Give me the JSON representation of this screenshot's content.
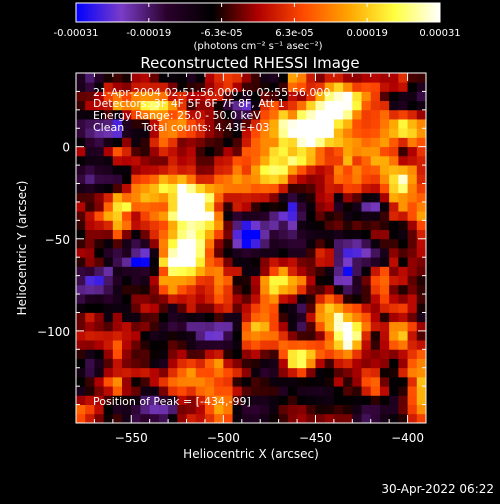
{
  "chart_data": {
    "type": "heatmap",
    "title": "Reconstructed RHESSI Image",
    "xlabel": "Heliocentric X (arcsec)",
    "ylabel": "Heliocentric Y (arcsec)",
    "xlim": [
      -580,
      -390
    ],
    "ylim": [
      -150,
      40
    ],
    "x_ticks": [
      -550,
      -500,
      -450,
      -400
    ],
    "y_ticks": [
      -100,
      -50,
      0
    ],
    "x_tick_labels": [
      "−550",
      "−500",
      "−450",
      "−400"
    ],
    "y_tick_labels": [
      "−100",
      "−50",
      "0"
    ],
    "colorbar": {
      "range": [
        -0.00031,
        0.00031
      ],
      "tick_labels": [
        "-0.00031",
        "-0.00019",
        "-6.3e-05",
        "6.3e-05",
        "0.00019",
        "0.00031"
      ],
      "unit_label": "(photons cm⁻² s⁻¹ asec⁻²)",
      "colors": [
        "#0000ff",
        "#7a3cc8",
        "#2a002a",
        "#000000",
        "#b00000",
        "#ff4a00",
        "#ffa500",
        "#ffff40",
        "#ffffff"
      ]
    },
    "annotations": [
      "21-Apr-2004 02:51:56.000 to 02:55:56.000",
      "Detectors: 3F 4F 5F 6F 7F 8F, Att 1",
      "Energy Range: 25.0 - 50.0 keV",
      "Clean     Total counts: 4.43E+03"
    ],
    "peak_label": "Position of Peak = [-434,-99]",
    "peak_position": [
      -434,
      -99
    ],
    "hotspots": [
      {
        "x": -522,
        "y": -50,
        "sx": 10,
        "sy": 20,
        "a": 1.0
      },
      {
        "x": -513,
        "y": -32,
        "sx": 9,
        "sy": 10,
        "a": 0.85
      },
      {
        "x": -528,
        "y": -22,
        "sx": 8,
        "sy": 7,
        "a": 0.6
      },
      {
        "x": -452,
        "y": 10,
        "sx": 14,
        "sy": 12,
        "a": 0.85
      },
      {
        "x": -438,
        "y": 22,
        "sx": 10,
        "sy": 10,
        "a": 0.75
      },
      {
        "x": -470,
        "y": -8,
        "sx": 12,
        "sy": 8,
        "a": 0.55
      },
      {
        "x": -492,
        "y": -20,
        "sx": 10,
        "sy": 9,
        "a": 0.5
      },
      {
        "x": -434,
        "y": -99,
        "sx": 9,
        "sy": 9,
        "a": 1.0
      },
      {
        "x": -455,
        "y": -110,
        "sx": 10,
        "sy": 8,
        "a": 0.6
      },
      {
        "x": -480,
        "y": -95,
        "sx": 9,
        "sy": 12,
        "a": 0.55
      },
      {
        "x": -560,
        "y": -110,
        "sx": 9,
        "sy": 12,
        "a": 0.6
      },
      {
        "x": -548,
        "y": -28,
        "sx": 10,
        "sy": 10,
        "a": 0.5
      },
      {
        "x": -405,
        "y": -15,
        "sx": 8,
        "sy": 22,
        "a": 0.6
      },
      {
        "x": -410,
        "y": -70,
        "sx": 10,
        "sy": 10,
        "a": 0.5
      },
      {
        "x": -398,
        "y": -120,
        "sx": 8,
        "sy": 12,
        "a": 0.55
      },
      {
        "x": -520,
        "y": -120,
        "sx": 8,
        "sy": 8,
        "a": 0.45
      },
      {
        "x": -540,
        "y": 20,
        "sx": 8,
        "sy": 6,
        "a": 0.45
      },
      {
        "x": -470,
        "y": -62,
        "sx": 9,
        "sy": 9,
        "a": 0.5
      },
      {
        "x": -497,
        "y": -70,
        "sx": 7,
        "sy": 7,
        "a": 0.45
      }
    ],
    "coldspots": [
      {
        "x": -478,
        "y": -45,
        "sx": 14,
        "sy": 12,
        "a": 0.9
      },
      {
        "x": -555,
        "y": -65,
        "sx": 16,
        "sy": 14,
        "a": 0.8
      },
      {
        "x": -430,
        "y": -58,
        "sx": 12,
        "sy": 12,
        "a": 0.75
      },
      {
        "x": -500,
        "y": -100,
        "sx": 12,
        "sy": 10,
        "a": 0.8
      },
      {
        "x": -540,
        "y": -140,
        "sx": 12,
        "sy": 8,
        "a": 0.7
      },
      {
        "x": -425,
        "y": -140,
        "sx": 10,
        "sy": 8,
        "a": 0.6
      },
      {
        "x": -495,
        "y": 15,
        "sx": 10,
        "sy": 8,
        "a": 0.55
      },
      {
        "x": -568,
        "y": 5,
        "sx": 8,
        "sy": 14,
        "a": 0.55
      }
    ]
  },
  "footer": {
    "timestamp": "30-Apr-2022 06:22"
  }
}
